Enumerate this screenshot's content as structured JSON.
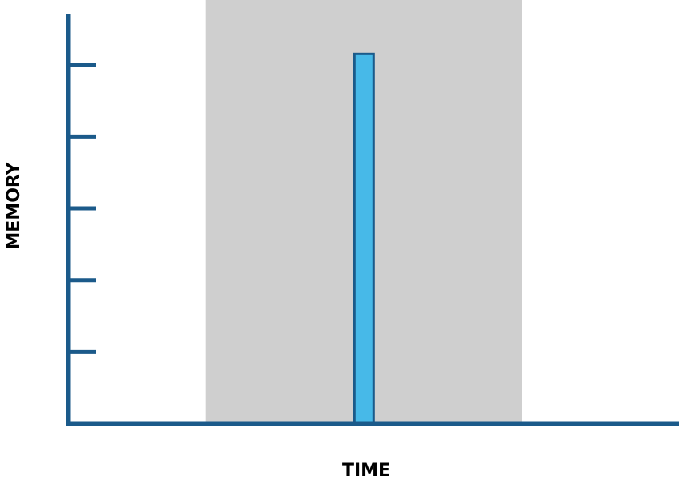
{
  "chart_data": {
    "type": "bar",
    "xlabel": "TIME",
    "ylabel": "MEMORY",
    "xlim": [
      0,
      100
    ],
    "ylim": [
      0,
      5.7
    ],
    "y_ticks": [
      1,
      2,
      3,
      4,
      5
    ],
    "tick_labels_shown": false,
    "grid": false,
    "shaded_region": {
      "x_start": 22.5,
      "x_end": 74.3,
      "color": "#cfcfcf"
    },
    "bars": [
      {
        "x": 48.4,
        "value": 5.15
      }
    ],
    "colors": {
      "axis": "#1b5a8a",
      "bar_fill": "#47b9e8",
      "bar_stroke": "#1b5a8a"
    }
  }
}
